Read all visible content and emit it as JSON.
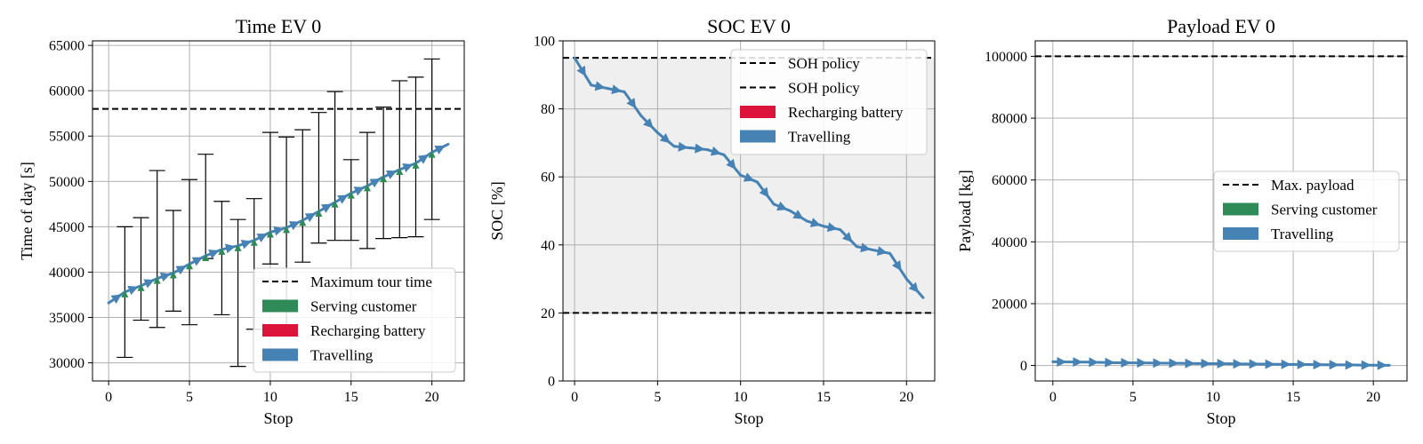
{
  "colors": {
    "travel": "#4682b4",
    "serve": "#2e8b57",
    "recharge": "#dc143c",
    "policy_band": "#efefef",
    "grid": "#b0b0b0"
  },
  "chart_data": [
    {
      "type": "line",
      "title": "Time EV 0",
      "xlabel": "Stop",
      "ylabel": "Time of day [s]",
      "xlim": [
        -1,
        22
      ],
      "ylim": [
        28000,
        65500
      ],
      "xticks": [
        0,
        5,
        10,
        15,
        20
      ],
      "yticks": [
        30000,
        35000,
        40000,
        45000,
        50000,
        55000,
        60000,
        65000
      ],
      "grid": true,
      "legend_position": "lower-right",
      "hline": {
        "y": 58000,
        "label": "Maximum tour time"
      },
      "legend": [
        {
          "kind": "dash",
          "label": "Maximum tour time"
        },
        {
          "kind": "patch",
          "color": "#2e8b57",
          "label": "Serving customer"
        },
        {
          "kind": "patch",
          "color": "#dc143c",
          "label": "Recharging battery"
        },
        {
          "kind": "patch",
          "color": "#4682b4",
          "label": "Travelling"
        }
      ],
      "series": [
        {
          "name": "Travelling",
          "x": [
            0,
            1,
            2,
            3,
            4,
            5,
            6,
            7,
            8,
            9,
            10,
            11,
            12,
            13,
            14,
            15,
            16,
            17,
            18,
            19,
            20,
            21
          ],
          "y": [
            36600,
            37800,
            38500,
            39300,
            39900,
            40900,
            41800,
            42500,
            42900,
            43500,
            44400,
            44900,
            45700,
            46700,
            47700,
            48700,
            49500,
            50500,
            51300,
            52000,
            53200,
            54100
          ]
        },
        {
          "name": "Serving customer",
          "x": [
            1,
            2,
            3,
            4,
            5,
            6,
            7,
            8,
            9,
            10,
            11,
            12,
            13,
            14,
            15,
            16,
            17,
            18,
            19,
            20
          ],
          "y0": [
            37200,
            38000,
            38800,
            39500,
            40300,
            41300,
            42100,
            42700,
            43200,
            44000,
            44600,
            45200,
            46200,
            47200,
            48200,
            49000,
            50000,
            50900,
            51600,
            52600
          ],
          "y1": [
            37800,
            38500,
            39300,
            39900,
            40900,
            41800,
            42500,
            42900,
            43500,
            44400,
            44900,
            45700,
            46700,
            47700,
            48700,
            49500,
            50500,
            51300,
            52000,
            53200
          ]
        }
      ],
      "errorbars": {
        "x": [
          1,
          2,
          3,
          4,
          5,
          6,
          7,
          8,
          9,
          10,
          11,
          12,
          13,
          14,
          15,
          16,
          17,
          18,
          19,
          20
        ],
        "low": [
          30600,
          34700,
          33900,
          35700,
          34200,
          41500,
          35300,
          29600,
          33700,
          40900,
          33600,
          41100,
          43200,
          43500,
          43500,
          42600,
          43700,
          43800,
          43900,
          45800
        ],
        "high": [
          45000,
          46000,
          51200,
          46800,
          50200,
          53000,
          47800,
          45800,
          48100,
          55400,
          54900,
          55700,
          57600,
          59900,
          52400,
          55400,
          58200,
          61100,
          61500,
          63500
        ]
      }
    },
    {
      "type": "line",
      "title": "SOC EV 0",
      "xlabel": "Stop",
      "ylabel": "SOC [%]",
      "xlim": [
        -0.7,
        21.7
      ],
      "ylim": [
        0,
        100
      ],
      "xticks": [
        0,
        5,
        10,
        15,
        20
      ],
      "yticks": [
        0,
        20,
        40,
        60,
        80,
        100
      ],
      "grid": true,
      "legend_position": "upper-right",
      "band": [
        20,
        95
      ],
      "hlines": [
        {
          "y": 95,
          "label": "SOH policy"
        },
        {
          "y": 20,
          "label": "SOH policy"
        }
      ],
      "legend": [
        {
          "kind": "dash",
          "label": "SOH policy"
        },
        {
          "kind": "dash",
          "label": "SOH policy"
        },
        {
          "kind": "patch",
          "color": "#dc143c",
          "label": "Recharging battery"
        },
        {
          "kind": "patch",
          "color": "#4682b4",
          "label": "Travelling"
        }
      ],
      "series": [
        {
          "name": "Travelling",
          "x": [
            0,
            1,
            2,
            3,
            4,
            5,
            6,
            7,
            8,
            9,
            10,
            11,
            12,
            13,
            14,
            15,
            16,
            17,
            18,
            19,
            20,
            21
          ],
          "y": [
            95,
            87,
            86,
            85,
            78,
            73,
            69,
            68.5,
            68,
            66.5,
            60.5,
            58.5,
            52,
            50,
            47,
            45.5,
            44.5,
            39.5,
            38.5,
            37.5,
            30,
            24.5
          ]
        }
      ]
    },
    {
      "type": "line",
      "title": "Payload EV 0",
      "xlabel": "Stop",
      "ylabel": "Payload [kg]",
      "xlim": [
        -1.1,
        22.1
      ],
      "ylim": [
        -5000,
        105000
      ],
      "xticks": [
        0,
        5,
        10,
        15,
        20
      ],
      "yticks": [
        0,
        20000,
        40000,
        60000,
        80000,
        100000
      ],
      "grid": true,
      "legend_position": "center-right",
      "hline": {
        "y": 100000,
        "label": "Max. payload"
      },
      "legend": [
        {
          "kind": "dash",
          "label": "Max. payload"
        },
        {
          "kind": "patch",
          "color": "#2e8b57",
          "label": "Serving customer"
        },
        {
          "kind": "patch",
          "color": "#4682b4",
          "label": "Travelling"
        }
      ],
      "series": [
        {
          "name": "Travelling",
          "x": [
            0,
            1,
            2,
            3,
            4,
            5,
            6,
            7,
            8,
            9,
            10,
            11,
            12,
            13,
            14,
            15,
            16,
            17,
            18,
            19,
            20,
            21
          ],
          "y": [
            1200,
            1150,
            1100,
            1000,
            900,
            850,
            800,
            750,
            700,
            650,
            600,
            550,
            500,
            450,
            400,
            350,
            300,
            250,
            200,
            150,
            100,
            50
          ]
        }
      ]
    }
  ]
}
